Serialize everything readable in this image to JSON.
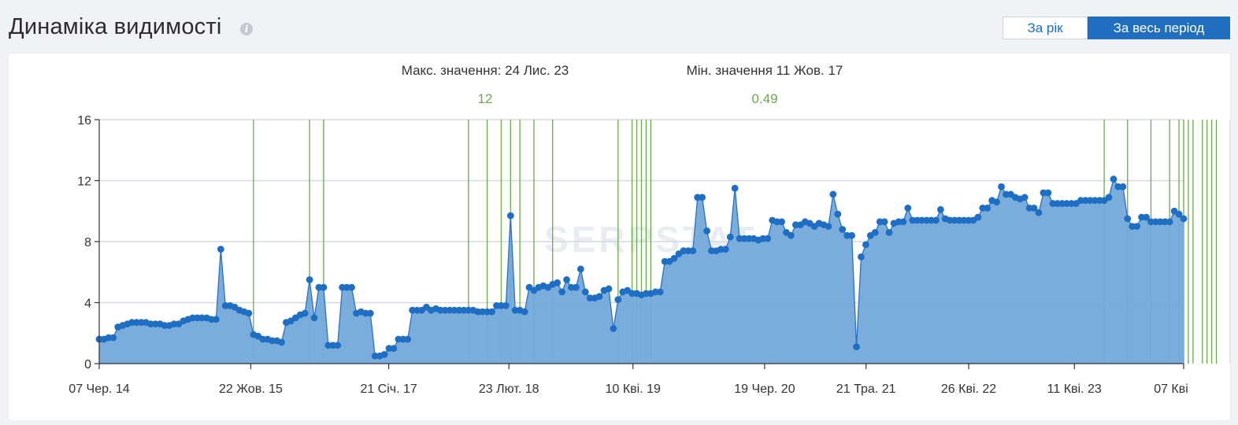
{
  "header": {
    "title": "Динаміка видимості",
    "info_icon": "info-icon",
    "period_buttons": [
      "За рік",
      "За весь період"
    ],
    "active_period": "За весь період"
  },
  "stats": {
    "max_label": "Макс. значення: 24 Лис. 23",
    "max_value": "12",
    "min_label": "Мін. значення 11 Жов. 17",
    "min_value": "0.49"
  },
  "watermark": "SERPSTAT",
  "colors": {
    "accent": "#1f6ebf",
    "area_fill": "#74a9da",
    "line": "#2a72c0",
    "marker": "#1e6ec4",
    "update_line": "#6aaa4c",
    "stat_value": "#6aaa4c"
  },
  "chart_data": {
    "type": "area",
    "x_axis": "date",
    "ylim": [
      0,
      16
    ],
    "yticks": [
      0,
      4,
      8,
      12,
      16
    ],
    "grid": "horizontal",
    "x_tick_labels": [
      "07 Чер. 14",
      "22 Жов. 15",
      "21 Січ. 17",
      "23 Лют. 18",
      "10 Кві. 19",
      "19 Чер. 20",
      "21 Тра. 21",
      "26 Кві. 22",
      "11 Кві. 23",
      "07 Кві"
    ],
    "x_tick_dates": [
      "2014-06-07",
      "2015-10-22",
      "2017-01-21",
      "2018-02-23",
      "2019-04-10",
      "2020-06-19",
      "2021-05-21",
      "2022-04-26",
      "2023-04-11",
      "2024-04-07"
    ],
    "values": [
      1.6,
      1.6,
      1.7,
      1.7,
      2.4,
      2.5,
      2.6,
      2.7,
      2.7,
      2.7,
      2.7,
      2.6,
      2.6,
      2.6,
      2.5,
      2.5,
      2.6,
      2.6,
      2.8,
      2.9,
      3.0,
      3.0,
      3.0,
      3.0,
      2.9,
      2.9,
      7.5,
      3.8,
      3.8,
      3.7,
      3.5,
      3.4,
      3.3,
      1.9,
      1.8,
      1.6,
      1.6,
      1.5,
      1.5,
      1.4,
      2.7,
      2.8,
      3.0,
      3.2,
      3.3,
      5.5,
      3.0,
      5.0,
      5.0,
      1.2,
      1.2,
      1.2,
      5.0,
      5.0,
      5.0,
      3.3,
      3.4,
      3.3,
      3.3,
      0.5,
      0.5,
      0.6,
      1.0,
      1.0,
      1.6,
      1.6,
      1.6,
      3.5,
      3.5,
      3.5,
      3.7,
      3.5,
      3.6,
      3.5,
      3.5,
      3.5,
      3.5,
      3.5,
      3.5,
      3.5,
      3.5,
      3.4,
      3.4,
      3.4,
      3.4,
      3.8,
      3.8,
      3.8,
      9.7,
      3.5,
      3.5,
      3.4,
      5.0,
      4.8,
      5.0,
      5.1,
      5.0,
      5.2,
      5.3,
      4.7,
      5.5,
      5.0,
      5.0,
      6.2,
      4.7,
      4.3,
      4.3,
      4.4,
      4.8,
      4.9,
      2.3,
      4.2,
      4.7,
      4.8,
      4.6,
      4.6,
      4.5,
      4.6,
      4.6,
      4.7,
      4.7,
      6.7,
      6.7,
      6.9,
      7.2,
      7.4,
      7.4,
      7.4,
      10.9,
      10.9,
      8.7,
      7.4,
      7.4,
      7.5,
      7.5,
      8.3,
      11.5,
      8.2,
      8.2,
      8.2,
      8.2,
      8.1,
      8.2,
      8.2,
      9.4,
      9.3,
      9.3,
      8.6,
      8.4,
      9.1,
      9.1,
      9.3,
      9.2,
      9.0,
      9.2,
      9.1,
      9.0,
      11.1,
      9.8,
      8.8,
      8.4,
      8.4,
      1.1,
      7.0,
      7.8,
      8.4,
      8.6,
      9.3,
      9.3,
      8.6,
      9.2,
      9.3,
      9.3,
      10.2,
      9.4,
      9.4,
      9.4,
      9.4,
      9.4,
      9.4,
      10.1,
      9.5,
      9.4,
      9.4,
      9.4,
      9.4,
      9.4,
      9.4,
      9.6,
      10.2,
      10.2,
      10.7,
      10.6,
      11.6,
      11.1,
      11.1,
      10.9,
      10.8,
      10.9,
      10.2,
      10.2,
      9.9,
      11.2,
      11.2,
      10.5,
      10.5,
      10.5,
      10.5,
      10.5,
      10.5,
      10.7,
      10.7,
      10.7,
      10.7,
      10.7,
      10.7,
      10.9,
      12.1,
      11.6,
      11.6,
      9.5,
      9.0,
      9.0,
      9.6,
      9.6,
      9.3,
      9.3,
      9.3,
      9.3,
      9.3,
      10.0,
      9.8,
      9.5
    ],
    "update_markers_index": [
      33,
      45,
      48,
      79,
      83,
      86,
      88,
      90,
      93,
      97,
      111,
      114,
      115,
      116,
      117,
      118,
      215,
      220,
      225,
      229,
      231,
      232,
      233,
      234,
      236,
      237,
      238,
      239,
      242,
      244,
      249,
      251,
      254,
      255
    ]
  }
}
